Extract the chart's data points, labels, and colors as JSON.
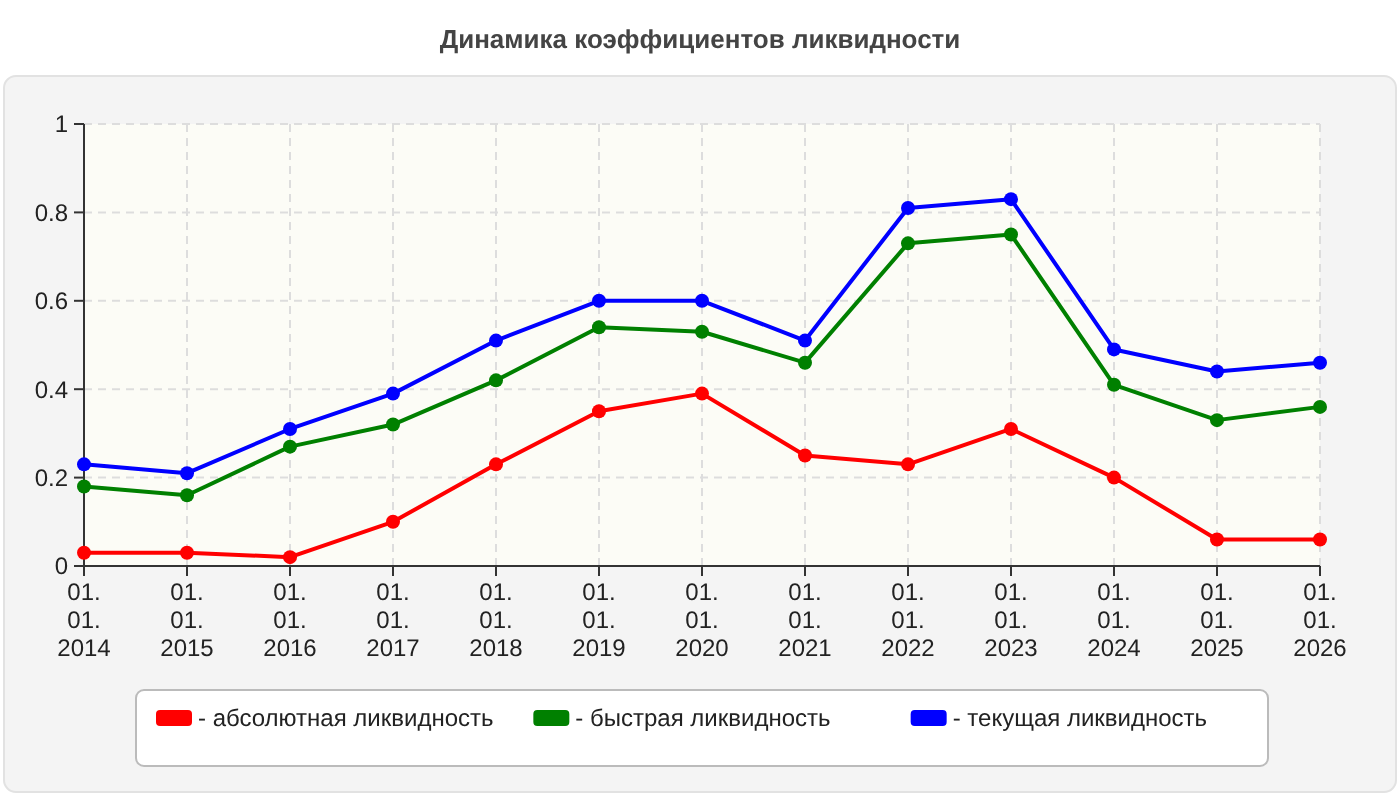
{
  "chart_data": {
    "type": "line",
    "title": "Динамика коэффициентов ликвидности",
    "categories": [
      "01. 01. 2014",
      "01. 01. 2015",
      "01. 01. 2016",
      "01. 01. 2017",
      "01. 01. 2018",
      "01. 01. 2019",
      "01. 01. 2020",
      "01. 01. 2021",
      "01. 01. 2022",
      "01. 01. 2023",
      "01. 01. 2024",
      "01. 01. 2025",
      "01. 01. 2026"
    ],
    "series": [
      {
        "name": "- абсолютная ликвидность",
        "color": "#ff0000",
        "values": [
          0.03,
          0.03,
          0.02,
          0.1,
          0.23,
          0.35,
          0.39,
          0.25,
          0.23,
          0.31,
          0.2,
          0.06,
          0.06
        ]
      },
      {
        "name": "- быстрая ликвидность",
        "color": "#008000",
        "values": [
          0.18,
          0.16,
          0.27,
          0.32,
          0.42,
          0.54,
          0.53,
          0.46,
          0.73,
          0.75,
          0.41,
          0.33,
          0.36
        ]
      },
      {
        "name": "- текущая ликвидность",
        "color": "#0000ff",
        "values": [
          0.23,
          0.21,
          0.31,
          0.39,
          0.51,
          0.6,
          0.6,
          0.51,
          0.81,
          0.83,
          0.49,
          0.44,
          0.46
        ]
      }
    ],
    "ylim": [
      0,
      1
    ],
    "yticks": [
      0,
      0.2,
      0.4,
      0.6,
      0.8,
      1
    ],
    "grid": true,
    "legend": "bottom",
    "marker": "circle",
    "line_style": "solid"
  }
}
